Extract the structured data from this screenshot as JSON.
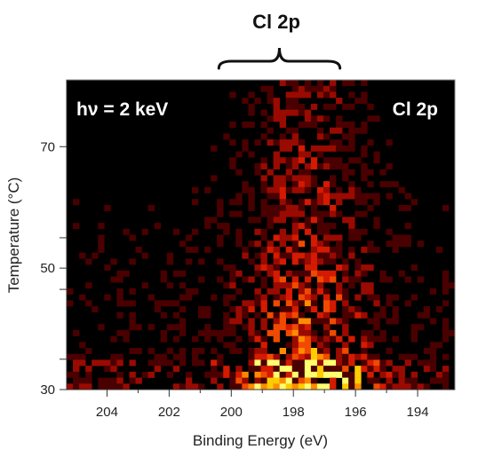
{
  "chart_data": {
    "type": "heatmap",
    "xlabel": "Binding Energy (eV)",
    "ylabel": "Temperature (°C)",
    "x_reversed": true,
    "xlim": [
      205.3,
      192.8
    ],
    "ylim": [
      30,
      81
    ],
    "x_ticks": [
      204,
      202,
      200,
      198,
      196,
      194
    ],
    "y_tick_labels": [
      {
        "value": 70,
        "label": "70"
      },
      {
        "value": 50,
        "label": "50"
      },
      {
        "value": 30,
        "label": "30"
      }
    ],
    "y_minor_ticks": [
      35,
      46.5,
      55
    ],
    "grid": false,
    "colormap": [
      "#000000",
      "#4a0000",
      "#9a0a00",
      "#d41a00",
      "#f04a00",
      "#ff8c00",
      "#ffcc00",
      "#ffff70"
    ],
    "intensity_model": {
      "peak_center_eV": 197.6,
      "peak_width_eV": 1.3,
      "strong_rows_max_temperature": 35,
      "note": ""
    },
    "annotations": {
      "photon_energy": "hν = 2 keV",
      "region_inside": "Cl 2p",
      "region_above": "Cl 2p",
      "bracket_eV": [
        200.4,
        196.5
      ]
    }
  }
}
